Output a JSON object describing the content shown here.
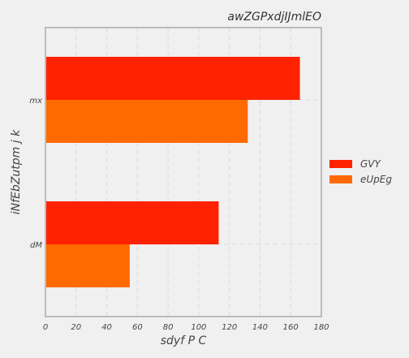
{
  "chart_data": {
    "type": "bar",
    "orientation": "horizontal",
    "title": "awZGPxdjIJmlEO",
    "xlabel": "sdyf P  C",
    "ylabel": "iNfEbZutpm j k",
    "categories": [
      "mx",
      "dM"
    ],
    "series": [
      {
        "name": "GVY",
        "values": [
          166,
          113
        ],
        "color": "#ff2200"
      },
      {
        "name": "eUpEg",
        "values": [
          132,
          55
        ],
        "color": "#ff6a00"
      }
    ],
    "xlim": [
      0,
      180
    ],
    "xticks": [
      "0",
      "20",
      "40",
      "60",
      "80",
      "100",
      "120",
      "140",
      "160",
      "180"
    ],
    "grid": true,
    "legend_position": "right"
  }
}
